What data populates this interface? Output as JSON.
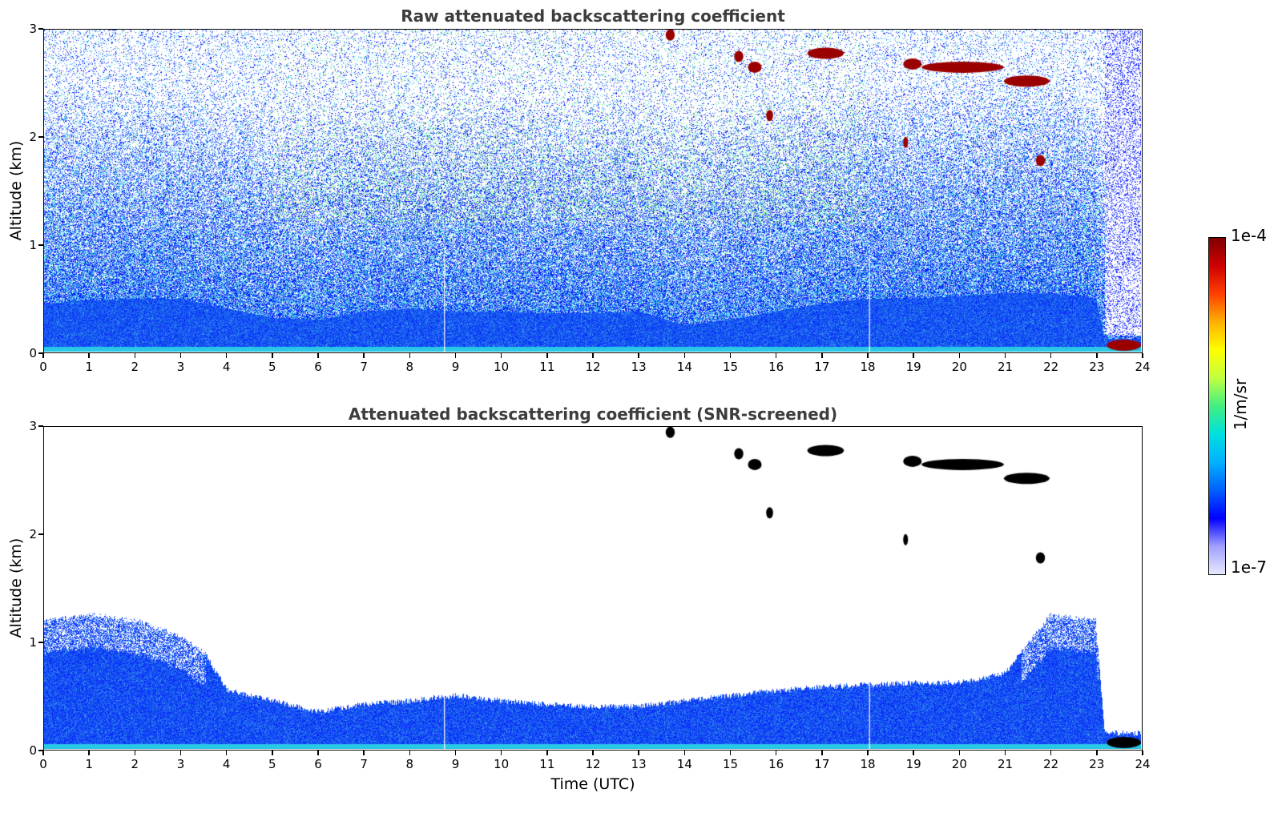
{
  "chart_data": [
    {
      "type": "heatmap",
      "title": "Raw attenuated backscattering coefficient",
      "xlabel": "",
      "ylabel": "Altitude (km)",
      "xlim": [
        0,
        24
      ],
      "ylim": [
        0,
        3
      ],
      "xticks": [
        "0",
        "1",
        "2",
        "3",
        "4",
        "5",
        "6",
        "7",
        "8",
        "9",
        "10",
        "11",
        "12",
        "13",
        "14",
        "15",
        "16",
        "17",
        "18",
        "19",
        "20",
        "21",
        "22",
        "23",
        "24"
      ],
      "yticks": [
        "0",
        "1",
        "2",
        "3"
      ],
      "boundary_layer_top_km": [
        [
          0,
          0.45
        ],
        [
          1,
          0.48
        ],
        [
          2,
          0.5
        ],
        [
          3,
          0.5
        ],
        [
          4,
          0.4
        ],
        [
          5,
          0.32
        ],
        [
          6,
          0.3
        ],
        [
          7,
          0.38
        ],
        [
          8,
          0.4
        ],
        [
          9,
          0.38
        ],
        [
          10,
          0.38
        ],
        [
          11,
          0.36
        ],
        [
          12,
          0.36
        ],
        [
          13,
          0.38
        ],
        [
          14,
          0.25
        ],
        [
          15,
          0.3
        ],
        [
          16,
          0.38
        ],
        [
          17,
          0.45
        ],
        [
          18,
          0.5
        ],
        [
          19,
          0.5
        ],
        [
          20,
          0.52
        ],
        [
          21,
          0.55
        ],
        [
          22,
          0.55
        ],
        [
          23,
          0.5
        ],
        [
          23.2,
          0.12
        ],
        [
          24,
          0.12
        ]
      ],
      "cloud_features": [
        {
          "t_start": 13.6,
          "t_end": 13.8,
          "alt_km": 2.95
        },
        {
          "t_start": 15.1,
          "t_end": 15.3,
          "alt_km": 2.75
        },
        {
          "t_start": 15.4,
          "t_end": 15.7,
          "alt_km": 2.65
        },
        {
          "t_start": 16.7,
          "t_end": 17.5,
          "alt_km": 2.78
        },
        {
          "t_start": 18.8,
          "t_end": 19.2,
          "alt_km": 2.68
        },
        {
          "t_start": 19.2,
          "t_end": 21.0,
          "alt_km": 2.65
        },
        {
          "t_start": 21.0,
          "t_end": 22.0,
          "alt_km": 2.52
        },
        {
          "t_start": 15.8,
          "t_end": 15.95,
          "alt_km": 2.2
        },
        {
          "t_start": 18.8,
          "t_end": 18.9,
          "alt_km": 1.95
        },
        {
          "t_start": 21.7,
          "t_end": 21.9,
          "alt_km": 1.78
        },
        {
          "t_start": 23.25,
          "t_end": 24.0,
          "alt_km": 0.06
        }
      ]
    },
    {
      "type": "heatmap",
      "title": "Attenuated backscattering coefficient (SNR-screened)",
      "xlabel": "Time (UTC)",
      "ylabel": "Altitude (km)",
      "xlim": [
        0,
        24
      ],
      "ylim": [
        0,
        3
      ],
      "xticks": [
        "0",
        "1",
        "2",
        "3",
        "4",
        "5",
        "6",
        "7",
        "8",
        "9",
        "10",
        "11",
        "12",
        "13",
        "14",
        "15",
        "16",
        "17",
        "18",
        "19",
        "20",
        "21",
        "22",
        "23",
        "24"
      ],
      "yticks": [
        "0",
        "1",
        "2",
        "3"
      ],
      "boundary_layer_top_km": [
        [
          0,
          1.2
        ],
        [
          1,
          1.25
        ],
        [
          2,
          1.2
        ],
        [
          3,
          1.05
        ],
        [
          3.5,
          0.9
        ],
        [
          4,
          0.55
        ],
        [
          5,
          0.45
        ],
        [
          6,
          0.35
        ],
        [
          7,
          0.42
        ],
        [
          8,
          0.45
        ],
        [
          9,
          0.5
        ],
        [
          10,
          0.45
        ],
        [
          11,
          0.42
        ],
        [
          12,
          0.4
        ],
        [
          13,
          0.4
        ],
        [
          14,
          0.45
        ],
        [
          15,
          0.5
        ],
        [
          16,
          0.55
        ],
        [
          17,
          0.58
        ],
        [
          18,
          0.6
        ],
        [
          19,
          0.62
        ],
        [
          20,
          0.62
        ],
        [
          21,
          0.7
        ],
        [
          22,
          1.25
        ],
        [
          23,
          1.2
        ],
        [
          23.2,
          0.15
        ],
        [
          24,
          0.15
        ]
      ]
    }
  ],
  "colorbar": {
    "max_label": "1e-4",
    "min_label": "1e-7",
    "title": "1/m/sr",
    "colors": [
      "#e8e8ff",
      "#a0a0ff",
      "#0000ff",
      "#0060ff",
      "#00b0ff",
      "#00e0e0",
      "#40f080",
      "#c0ff40",
      "#ffff00",
      "#ffb000",
      "#ff4000",
      "#d00000",
      "#800000"
    ]
  }
}
